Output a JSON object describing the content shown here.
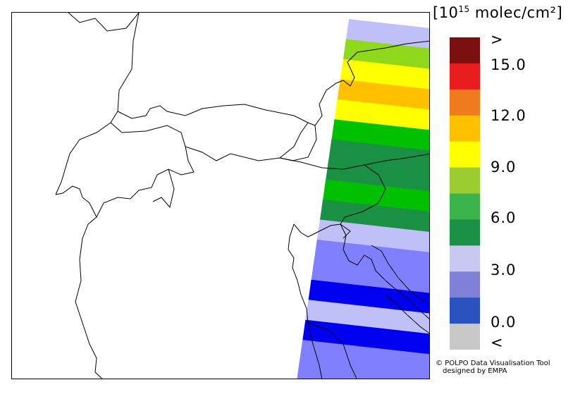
{
  "legend": {
    "title_prefix": "[10",
    "title_exp": "15",
    "title_suffix": " molec/cm²]",
    "labels": [
      {
        "text": ">",
        "pos": 0
      },
      {
        "text": "15.0",
        "pos": 1
      },
      {
        "text": "12.0",
        "pos": 2
      },
      {
        "text": "9.0",
        "pos": 3
      },
      {
        "text": "6.0",
        "pos": 4
      },
      {
        "text": "3.0",
        "pos": 5
      },
      {
        "text": "0.0",
        "pos": 6
      },
      {
        "text": "<",
        "pos": 7
      }
    ],
    "colors": [
      "#7a1010",
      "#e81c1c",
      "#f07a1e",
      "#ffc000",
      "#ffff00",
      "#9acd32",
      "#3cb44b",
      "#199044",
      "#c8c8f0",
      "#8080d8",
      "#2a52be",
      "#c8c8c8"
    ]
  },
  "credit": {
    "line1": "© POLPO Data Visualisation Tool",
    "line2": "designed by EMPA"
  },
  "swath": {
    "bands": [
      {
        "value": 3.2,
        "color": "#c0c0f8"
      },
      {
        "value": 7.8,
        "color": "#8fd81c"
      },
      {
        "value": 10.2,
        "color": "#ffff00"
      },
      {
        "value": 11.5,
        "color": "#ffc000"
      },
      {
        "value": 10.2,
        "color": "#ffff00"
      },
      {
        "value": 5.8,
        "color": "#00c000"
      },
      {
        "value": 4.8,
        "color": "#199044"
      },
      {
        "value": 4.8,
        "color": "#199044"
      },
      {
        "value": 5.8,
        "color": "#00c000"
      },
      {
        "value": 4.8,
        "color": "#199044"
      },
      {
        "value": 3.2,
        "color": "#c0c0f8"
      },
      {
        "value": 2.0,
        "color": "#8080ff"
      },
      {
        "value": 2.0,
        "color": "#8080ff"
      },
      {
        "value": 0.5,
        "color": "#0000f0"
      },
      {
        "value": 3.2,
        "color": "#c0c0f8"
      },
      {
        "value": 0.5,
        "color": "#0000f0"
      },
      {
        "value": 2.0,
        "color": "#8080ff"
      },
      {
        "value": 2.0,
        "color": "#8080ff"
      }
    ]
  }
}
